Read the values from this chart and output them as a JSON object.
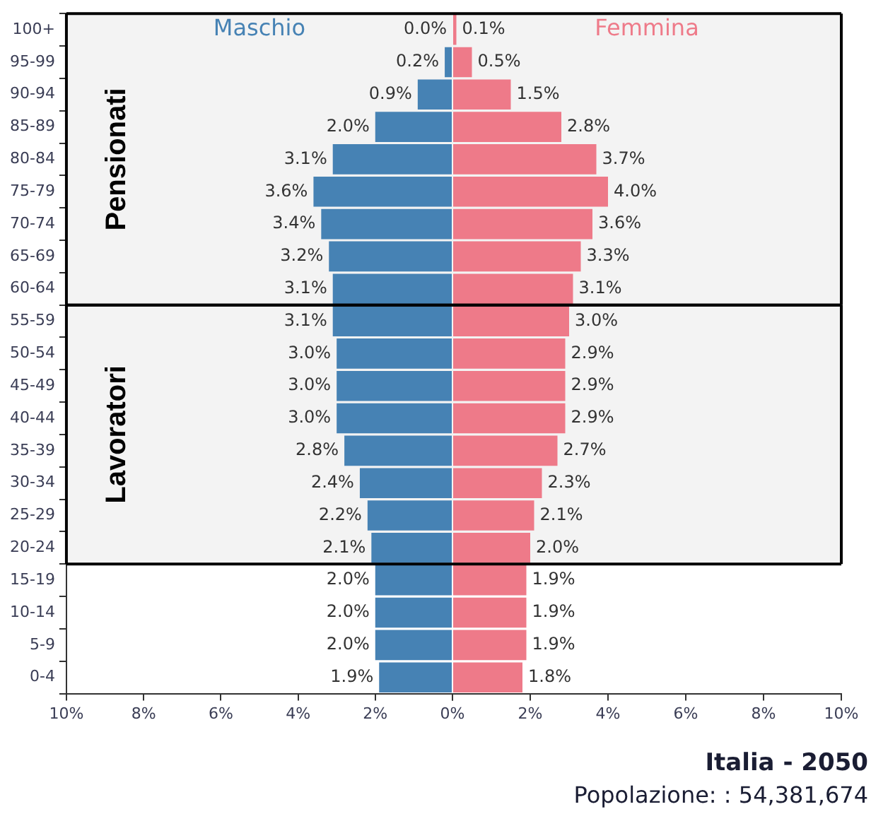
{
  "chart_data": [
    {
      "type": "bar",
      "orientation": "horizontal",
      "categories": [
        "100+",
        "95-99",
        "90-94",
        "85-89",
        "80-84",
        "75-79",
        "70-74",
        "65-69",
        "60-64",
        "55-59",
        "50-54",
        "45-49",
        "40-44",
        "35-39",
        "30-34",
        "25-29",
        "20-24",
        "15-19",
        "10-14",
        "5-9",
        "0-4"
      ],
      "series": [
        {
          "name": "Maschio",
          "color": "#4682b4",
          "values": [
            0.0,
            0.2,
            0.9,
            2.0,
            3.1,
            3.6,
            3.4,
            3.2,
            3.1,
            3.1,
            3.0,
            3.0,
            3.0,
            2.8,
            2.4,
            2.2,
            2.1,
            2.0,
            2.0,
            2.0,
            1.9
          ],
          "value_labels": [
            "0.0%",
            "0.2%",
            "0.9%",
            "2.0%",
            "3.1%",
            "3.6%",
            "3.4%",
            "3.2%",
            "3.1%",
            "3.1%",
            "3.0%",
            "3.0%",
            "3.0%",
            "2.8%",
            "2.4%",
            "2.2%",
            "2.1%",
            "2.0%",
            "2.0%",
            "2.0%",
            "1.9%"
          ]
        }
      ],
      "xlim": [
        10,
        0
      ],
      "xticks": [
        {
          "value": 10,
          "label": "10%"
        },
        {
          "value": 8,
          "label": "8%"
        },
        {
          "value": 6,
          "label": "6%"
        },
        {
          "value": 4,
          "label": "4%"
        },
        {
          "value": 2,
          "label": "2%"
        },
        {
          "value": 0,
          "label": null
        }
      ],
      "bands": [
        {
          "axis": "y",
          "from": "100+",
          "to": "60-64",
          "label": "Pensionati",
          "color": "#f3f3f3"
        },
        {
          "axis": "y",
          "from": "55-59",
          "to": "20-24",
          "label": "Lavoratori",
          "color": "#f3f3f3"
        }
      ],
      "legend": false
    },
    {
      "type": "bar",
      "orientation": "horizontal",
      "title": "Italia - 2050",
      "subtitle": "Popolazione: : 54,381,674",
      "categories": [
        "100+",
        "95-99",
        "90-94",
        "85-89",
        "80-84",
        "75-79",
        "70-74",
        "65-69",
        "60-64",
        "55-59",
        "50-54",
        "45-49",
        "40-44",
        "35-39",
        "30-34",
        "25-29",
        "20-24",
        "15-19",
        "10-14",
        "5-9",
        "0-4"
      ],
      "series": [
        {
          "name": "Femmina",
          "color": "#ee7a89",
          "values": [
            0.1,
            0.5,
            1.5,
            2.8,
            3.7,
            4.0,
            3.6,
            3.3,
            3.1,
            3.0,
            2.9,
            2.9,
            2.9,
            2.7,
            2.3,
            2.1,
            2.0,
            1.9,
            1.9,
            1.9,
            1.8
          ],
          "value_labels": [
            "0.1%",
            "0.5%",
            "1.5%",
            "2.8%",
            "3.7%",
            "4.0%",
            "3.6%",
            "3.3%",
            "3.1%",
            "3.0%",
            "2.9%",
            "2.9%",
            "2.9%",
            "2.7%",
            "2.3%",
            "2.1%",
            "2.0%",
            "1.9%",
            "1.9%",
            "1.9%",
            "1.8%"
          ]
        }
      ],
      "xlim": [
        0,
        10
      ],
      "xticks": [
        {
          "value": 0,
          "label": "0%"
        },
        {
          "value": 2,
          "label": "2%"
        },
        {
          "value": 4,
          "label": "4%"
        },
        {
          "value": 6,
          "label": "6%"
        },
        {
          "value": 8,
          "label": "8%"
        },
        {
          "value": 10,
          "label": "10%"
        }
      ],
      "bands": [
        {
          "axis": "y",
          "from": "100+",
          "to": "60-64",
          "color": "#f3f3f3"
        },
        {
          "axis": "y",
          "from": "55-59",
          "to": "20-24",
          "color": "#f3f3f3"
        }
      ],
      "tick_labels": "x",
      "legend": false
    }
  ]
}
